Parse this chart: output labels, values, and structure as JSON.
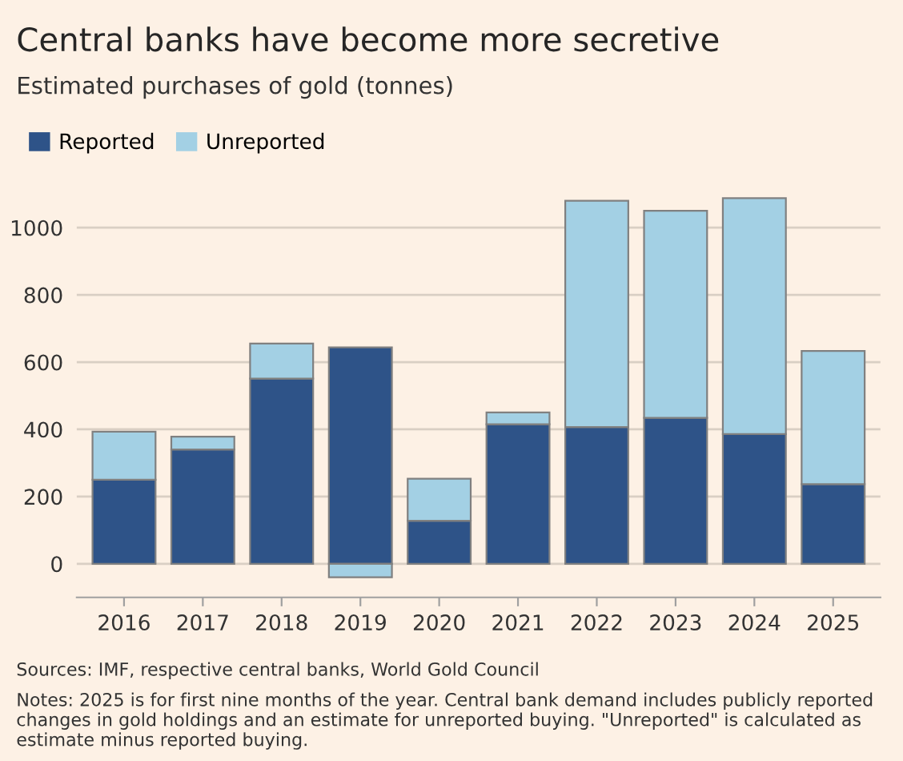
{
  "chart_data": {
    "type": "bar",
    "title": "Central banks have become more secretive",
    "subtitle": "Estimated purchases of gold (tonnes)",
    "categories": [
      "2016",
      "2017",
      "2018",
      "2019",
      "2020",
      "2021",
      "2022",
      "2023",
      "2024",
      "2025"
    ],
    "stacked": true,
    "series": [
      {
        "name": "Reported",
        "color": "#2e5388",
        "values": [
          250,
          340,
          551,
          644,
          128,
          415,
          407,
          434,
          386,
          237
        ]
      },
      {
        "name": "Unreported",
        "color": "#a3d0e4",
        "values": [
          143,
          38,
          104,
          -40,
          125,
          35,
          673,
          616,
          702,
          396
        ]
      }
    ],
    "ylim": [
      -100,
      1100
    ],
    "yticks": [
      0,
      200,
      400,
      600,
      800,
      1000
    ],
    "grid": "y",
    "legend": "top left",
    "annotations": [
      "Sources: IMF, respective central banks, World Gold Council",
      "Notes: 2025 is for first nine months of the year. Central bank demand includes publicly reported changes in gold holdings and an estimate for unreported buying. \"Unreported\" is calculated as estimate minus reported buying."
    ]
  }
}
